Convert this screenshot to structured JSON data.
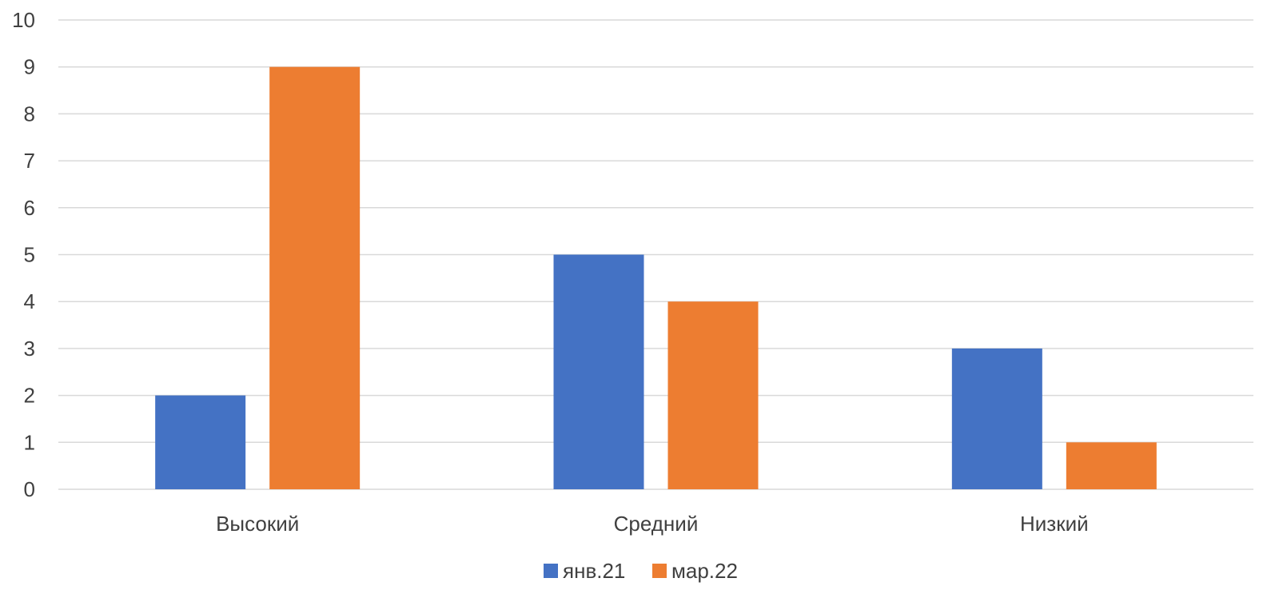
{
  "chart_data": {
    "type": "bar",
    "categories": [
      "Высокий",
      "Средний",
      "Низкий"
    ],
    "series": [
      {
        "name": "янв.21",
        "values": [
          2,
          5,
          3
        ],
        "color": "#4472C4"
      },
      {
        "name": "мар.22",
        "values": [
          9,
          4,
          1
        ],
        "color": "#ED7D31"
      }
    ],
    "ylim": [
      0,
      10
    ],
    "yticks": [
      0,
      1,
      2,
      3,
      4,
      5,
      6,
      7,
      8,
      9,
      10
    ],
    "grid": true,
    "gridColor": "#D9D9D9",
    "legend": "bottom-center"
  }
}
